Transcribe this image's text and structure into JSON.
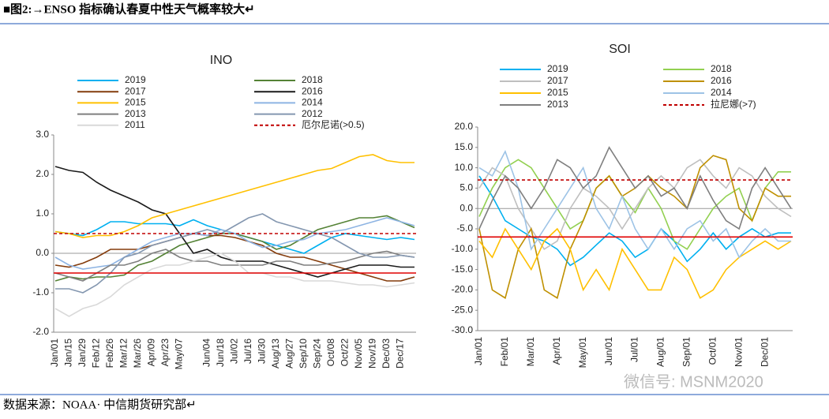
{
  "header": {
    "title": "■图2:→ENSO 指标确认春夏中性天气概率较大↵"
  },
  "footer": "数据来源：NOAA· 中信期货研究部↵",
  "watermark": "微信号: MSNM2020",
  "chart_data": [
    {
      "type": "line",
      "title": "INO",
      "categories": [
        "Jan/01",
        "Jan/15",
        "Jan/29",
        "Feb/12",
        "Feb/26",
        "Mar/12",
        "Mar/26",
        "Apr/09",
        "Apr/23",
        "May/07",
        null,
        "Jun/04",
        "Jun/18",
        "Jul/02",
        "Jul/16",
        "Jul/30",
        "Aug/13",
        "Aug/27",
        "Sep/10",
        "Sep/24",
        "Oct/08",
        "Oct/22",
        "Nov/05",
        "Nov/19",
        "Dec/03",
        "Dec/17",
        null
      ],
      "ylim": [
        -2,
        3
      ],
      "yticks": [
        {
          "value": 3,
          "label": "3.0"
        },
        {
          "value": 2,
          "label": "2.0"
        },
        {
          "value": 1,
          "label": "1.0"
        },
        {
          "value": 0,
          "label": "0.0"
        },
        {
          "value": -1,
          "label": "-1.0"
        },
        {
          "value": -2,
          "label": "-2.0"
        }
      ],
      "series": [
        {
          "name": "2019",
          "color": "#00b0f0",
          "values": [
            0.55,
            0.5,
            0.45,
            0.6,
            0.8,
            0.8,
            0.75,
            0.75,
            0.75,
            0.7,
            0.85,
            0.7,
            0.6,
            0.5,
            0.4,
            0.3,
            0.2,
            0.1,
            0.0,
            0.2,
            0.4,
            0.5,
            0.45,
            0.4,
            0.35,
            0.4,
            0.35
          ]
        },
        {
          "name": "2018",
          "color": "#548235",
          "values": [
            -0.7,
            -0.6,
            -0.65,
            -0.6,
            -0.6,
            -0.55,
            -0.3,
            -0.2,
            0.0,
            0.2,
            0.3,
            0.4,
            0.5,
            0.5,
            0.4,
            0.3,
            0.1,
            0.2,
            0.4,
            0.6,
            0.7,
            0.8,
            0.9,
            0.9,
            0.95,
            0.8,
            0.65
          ]
        },
        {
          "name": "2017",
          "color": "#843c0c",
          "values": [
            -0.3,
            -0.35,
            -0.25,
            -0.1,
            0.1,
            0.1,
            0.1,
            0.2,
            0.3,
            0.4,
            0.5,
            0.45,
            0.45,
            0.4,
            0.3,
            0.2,
            0.0,
            -0.1,
            -0.1,
            -0.2,
            -0.3,
            -0.4,
            -0.5,
            -0.6,
            -0.7,
            -0.7,
            -0.6
          ]
        },
        {
          "name": "2016",
          "color": "#1a1a1a",
          "values": [
            2.2,
            2.1,
            2.05,
            1.8,
            1.6,
            1.45,
            1.3,
            1.1,
            1.0,
            0.5,
            0.0,
            0.1,
            -0.1,
            -0.2,
            -0.2,
            -0.2,
            -0.3,
            -0.4,
            -0.5,
            -0.6,
            -0.5,
            -0.4,
            -0.3,
            -0.3,
            -0.3,
            -0.35,
            -0.35
          ]
        },
        {
          "name": "2015",
          "color": "#ffc000",
          "values": [
            0.55,
            0.5,
            0.4,
            0.45,
            0.45,
            0.55,
            0.7,
            0.9,
            1.0,
            1.1,
            1.2,
            1.3,
            1.4,
            1.5,
            1.6,
            1.7,
            1.8,
            1.9,
            2.0,
            2.1,
            2.15,
            2.3,
            2.45,
            2.5,
            2.35,
            2.3,
            2.3
          ]
        },
        {
          "name": "2014",
          "color": "#8eb4e3",
          "values": [
            -0.1,
            -0.3,
            -0.4,
            -0.35,
            -0.3,
            -0.1,
            0.1,
            0.3,
            0.4,
            0.5,
            0.5,
            0.45,
            0.6,
            0.5,
            0.3,
            0.15,
            0.2,
            0.3,
            0.35,
            0.5,
            0.55,
            0.6,
            0.7,
            0.8,
            0.9,
            0.8,
            0.7
          ]
        },
        {
          "name": "2013",
          "color": "#7f7f7f",
          "values": [
            -0.5,
            -0.6,
            -0.7,
            -0.5,
            -0.3,
            -0.3,
            -0.2,
            0.0,
            0.1,
            -0.1,
            -0.2,
            -0.2,
            -0.3,
            -0.3,
            -0.3,
            -0.3,
            -0.2,
            -0.2,
            -0.3,
            -0.3,
            -0.25,
            -0.2,
            -0.1,
            0.0,
            0.05,
            -0.05,
            -0.1
          ]
        },
        {
          "name": "2012",
          "color": "#8497b0",
          "values": [
            -0.9,
            -0.9,
            -1.0,
            -0.8,
            -0.5,
            -0.1,
            0.0,
            0.2,
            0.3,
            0.4,
            0.5,
            0.6,
            0.5,
            0.7,
            0.9,
            1.0,
            0.8,
            0.7,
            0.6,
            0.5,
            0.4,
            0.2,
            0.0,
            -0.1,
            -0.1,
            -0.05,
            -0.1
          ]
        },
        {
          "name": "2011",
          "color": "#d9d9d9",
          "values": [
            -1.4,
            -1.6,
            -1.4,
            -1.3,
            -1.1,
            -0.8,
            -0.6,
            -0.4,
            -0.3,
            -0.3,
            -0.2,
            -0.1,
            0.0,
            -0.2,
            -0.5,
            -0.5,
            -0.6,
            -0.6,
            -0.7,
            -0.7,
            -0.7,
            -0.75,
            -0.8,
            -0.8,
            -0.85,
            -0.8,
            -0.75
          ]
        }
      ],
      "threshold_lines": [
        {
          "name": "厄尔尼诺(>0.5)",
          "value": 0.5,
          "color": "#c00000",
          "dashed": true
        },
        {
          "value": -0.5,
          "color": "#e00000",
          "dashed": false
        }
      ]
    },
    {
      "type": "line",
      "title": "SOI",
      "categories": [
        "Jan/01",
        null,
        "Feb/01",
        null,
        "Mar/01",
        null,
        "Apr/01",
        null,
        "May/01",
        null,
        "Jun/01",
        null,
        "Jul/01",
        null,
        "Aug/01",
        null,
        "Sep/01",
        null,
        "Oct/01",
        null,
        "Nov/01",
        null,
        "Dec/01",
        null,
        null
      ],
      "ylim": [
        -30,
        20
      ],
      "yticks": [
        {
          "value": 20,
          "label": "20.0"
        },
        {
          "value": 15,
          "label": "15.0"
        },
        {
          "value": 10,
          "label": "10.0"
        },
        {
          "value": 5,
          "label": "5.0"
        },
        {
          "value": 0,
          "label": "0.0"
        },
        {
          "value": -5,
          "label": "-5.0"
        },
        {
          "value": -10,
          "label": "-10.0"
        },
        {
          "value": -15,
          "label": "-15.0"
        },
        {
          "value": -20,
          "label": "-20.0"
        },
        {
          "value": -25,
          "label": "-25.0"
        },
        {
          "value": -30,
          "label": "-30.0"
        }
      ],
      "series": [
        {
          "name": "2019",
          "color": "#00b0f0",
          "values": [
            8,
            3,
            -3,
            -5,
            -7,
            -8,
            -10,
            -14,
            -12,
            -9,
            -6,
            -8,
            -12,
            -10,
            -5,
            -8,
            -13,
            -10,
            -6,
            -10,
            -7,
            -5,
            -7,
            -6,
            -6
          ]
        },
        {
          "name": "2018",
          "color": "#92d050",
          "values": [
            -2,
            5,
            10,
            12,
            10,
            5,
            0,
            -5,
            -3,
            5,
            8,
            3,
            -1,
            5,
            0,
            -8,
            -10,
            -5,
            0,
            3,
            5,
            -3,
            5,
            9,
            9
          ]
        },
        {
          "name": "2017",
          "color": "#bfbfbf",
          "values": [
            5,
            10,
            8,
            0,
            -5,
            -10,
            -8,
            0,
            5,
            3,
            0,
            -5,
            0,
            5,
            8,
            5,
            10,
            12,
            8,
            5,
            10,
            8,
            3,
            0,
            -2
          ]
        },
        {
          "name": "2016",
          "color": "#bf9000",
          "values": [
            -5,
            -20,
            -22,
            -10,
            -5,
            -20,
            -22,
            -10,
            -3,
            5,
            8,
            3,
            5,
            8,
            5,
            3,
            0,
            10,
            13,
            12,
            0,
            -3,
            5,
            3,
            3
          ]
        },
        {
          "name": "2015",
          "color": "#ffc000",
          "values": [
            -8,
            -12,
            -5,
            -10,
            -15,
            -8,
            -5,
            -10,
            -20,
            -15,
            -20,
            -10,
            -15,
            -20,
            -20,
            -12,
            -15,
            -22,
            -20,
            -15,
            -12,
            -10,
            -8,
            -10,
            -8
          ]
        },
        {
          "name": "2014",
          "color": "#9dc3e6",
          "values": [
            10,
            8,
            14,
            5,
            -10,
            -5,
            0,
            5,
            10,
            0,
            -5,
            3,
            -5,
            -10,
            -5,
            -10,
            -5,
            -3,
            -8,
            -5,
            -12,
            -8,
            -5,
            -8,
            -8
          ]
        },
        {
          "name": "2013",
          "color": "#7f7f7f",
          "values": [
            -5,
            2,
            8,
            5,
            0,
            5,
            12,
            10,
            5,
            8,
            15,
            10,
            5,
            8,
            3,
            5,
            0,
            8,
            2,
            -3,
            -5,
            5,
            10,
            5,
            0
          ]
        }
      ],
      "threshold_lines": [
        {
          "name": "拉尼娜(>7)",
          "value": 7,
          "color": "#c00000",
          "dashed": true
        },
        {
          "value": -7,
          "color": "#e00000",
          "dashed": false
        }
      ]
    }
  ]
}
